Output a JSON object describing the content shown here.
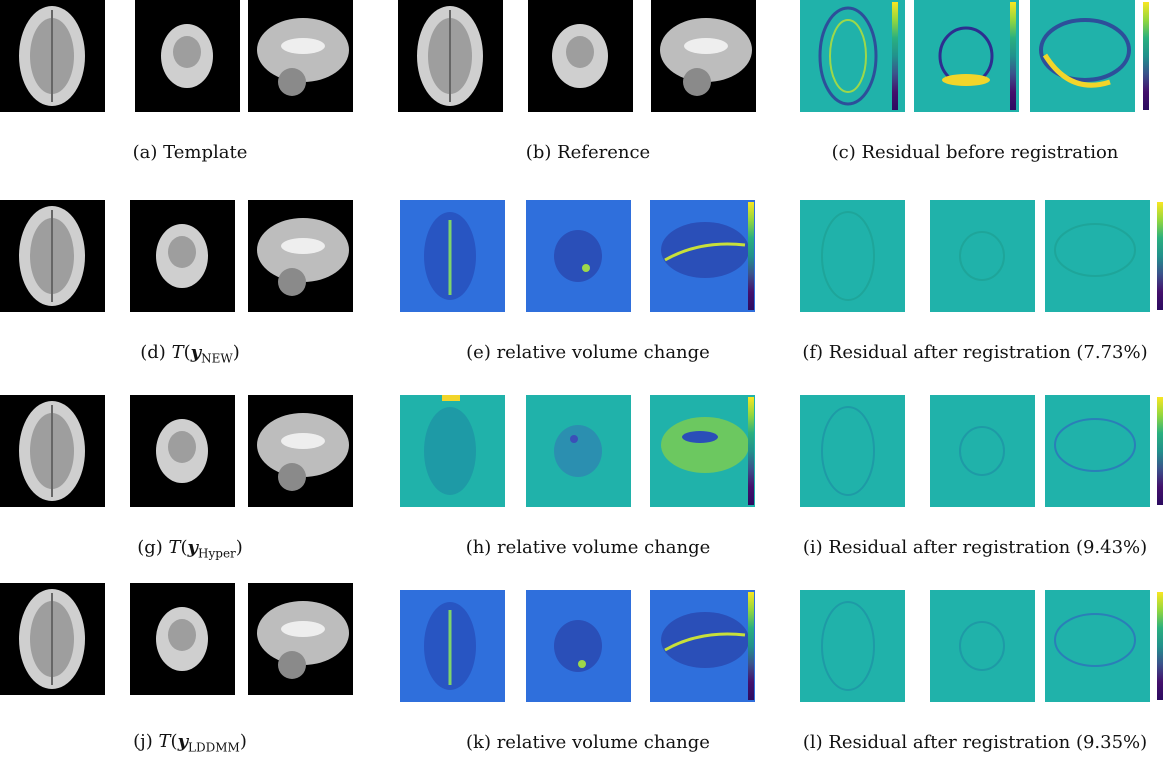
{
  "panels": [
    {
      "id": "a",
      "kind": "brain",
      "cap": "(a) Template"
    },
    {
      "id": "b",
      "kind": "brain",
      "cap": "(b) Reference"
    },
    {
      "id": "c",
      "kind": "residual",
      "cap": "(c) Residual before registration"
    },
    {
      "id": "d",
      "kind": "brain",
      "cap_label": "(d)",
      "cap_fn": "T",
      "cap_var": "y",
      "cap_sub": "NEW"
    },
    {
      "id": "e",
      "kind": "volume",
      "cap": "(e) relative volume change"
    },
    {
      "id": "f",
      "kind": "residual-after",
      "cap": "(f) Residual after registration (7.73%)"
    },
    {
      "id": "g",
      "kind": "brain",
      "cap_label": "(g)",
      "cap_fn": "T",
      "cap_var": "y",
      "cap_sub": "Hyper"
    },
    {
      "id": "h",
      "kind": "volume",
      "cap": "(h) relative volume change"
    },
    {
      "id": "i",
      "kind": "residual-after",
      "cap": "(i) Residual after registration (9.43%)"
    },
    {
      "id": "j",
      "kind": "brain",
      "cap_label": "(j)",
      "cap_fn": "T",
      "cap_var": "y",
      "cap_sub": "LDDMM"
    },
    {
      "id": "k",
      "kind": "volume",
      "cap": "(k) relative volume change"
    },
    {
      "id": "l",
      "kind": "residual-after",
      "cap": "(l) Residual after registration (9.35%)"
    }
  ],
  "colors": {
    "background_black": "#000000",
    "brain_gray": "#bdbdbd",
    "teal_field": "#20b2aa",
    "blue_field": "#2f6fdc",
    "viridis_top": "#f9e622",
    "viridis_bottom": "#2c0b60"
  }
}
